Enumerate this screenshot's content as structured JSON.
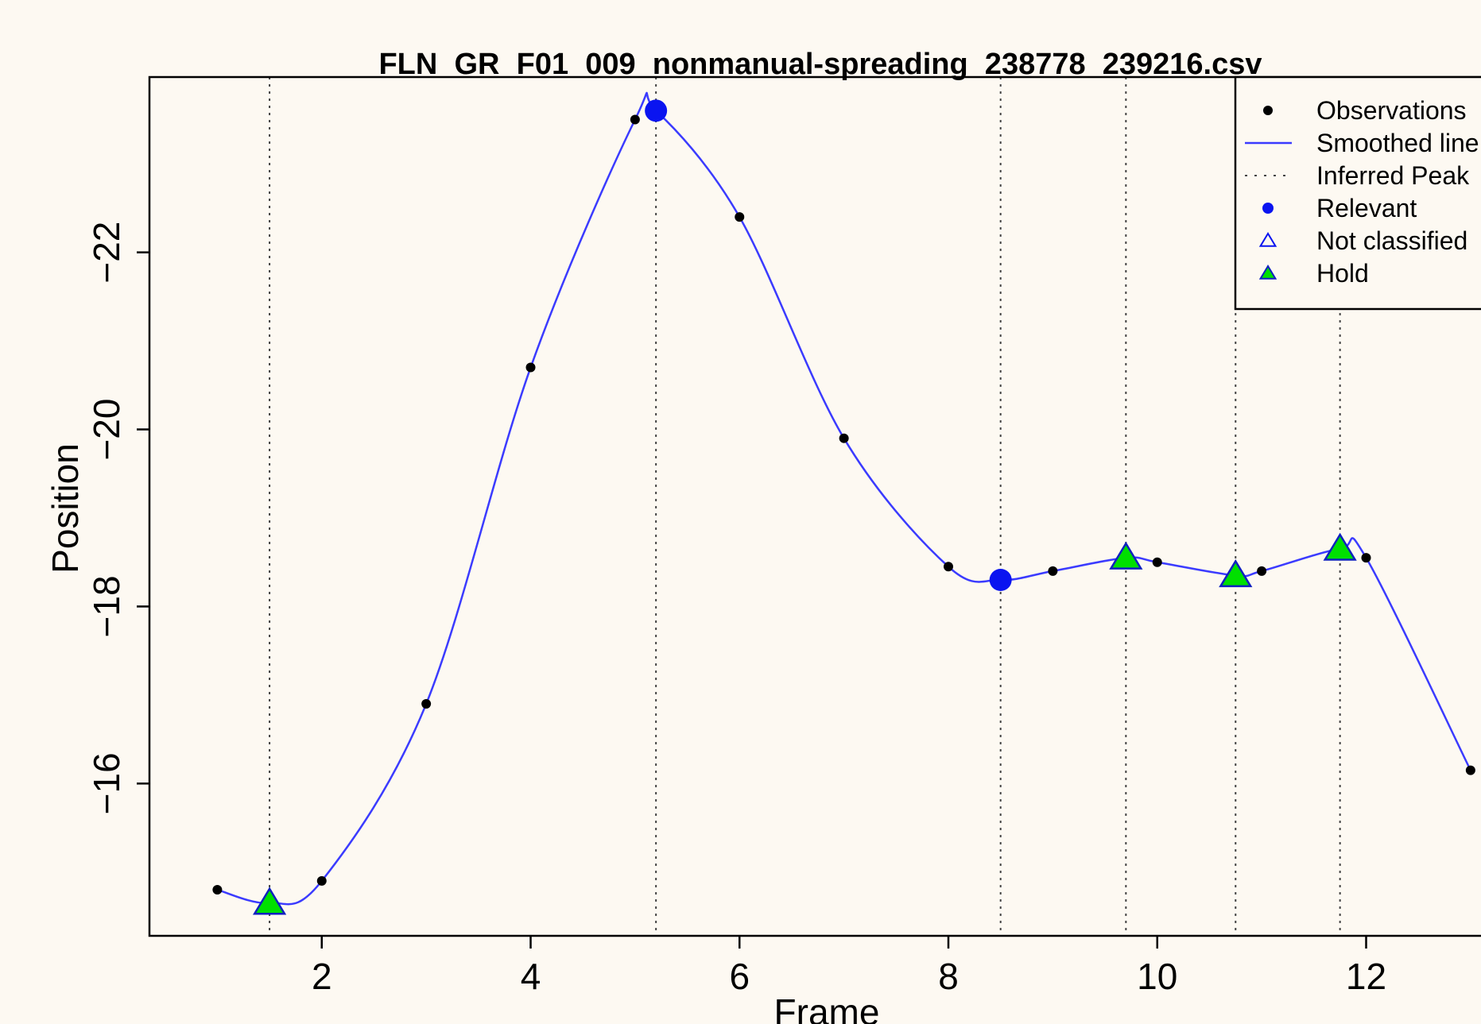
{
  "chart_data": {
    "type": "line",
    "title": "FLN_GR_F01_009_nonmanual-spreading_238778_239216.csv",
    "xlabel": "Frame",
    "ylabel": "Position",
    "xlim": [
      0.35,
      13.1
    ],
    "ylim": [
      -14.28,
      -23.98
    ],
    "x_ticks": [
      2,
      4,
      6,
      8,
      10,
      12
    ],
    "y_ticks": [
      -16,
      -18,
      -20,
      -22
    ],
    "grid": false,
    "legend_position": "top-right",
    "colors": {
      "line": "#3b3bff",
      "relevant": "#0a14f0",
      "hold_fill": "#00e000",
      "hold_edge": "#1020c0",
      "observation": "#000000",
      "peak_line": "#444444"
    },
    "observations": [
      {
        "x": 1,
        "y": -14.8
      },
      {
        "x": 2,
        "y": -14.9
      },
      {
        "x": 3,
        "y": -16.9
      },
      {
        "x": 4,
        "y": -20.7
      },
      {
        "x": 5,
        "y": -23.5
      },
      {
        "x": 6,
        "y": -22.4
      },
      {
        "x": 7,
        "y": -19.9
      },
      {
        "x": 8,
        "y": -18.45
      },
      {
        "x": 9,
        "y": -18.4
      },
      {
        "x": 10,
        "y": -18.5
      },
      {
        "x": 11,
        "y": -18.4
      },
      {
        "x": 12,
        "y": -18.55
      },
      {
        "x": 13,
        "y": -16.15
      }
    ],
    "smoothed_line": [
      {
        "x": 1,
        "y": -14.8
      },
      {
        "x": 1.5,
        "y": -14.65
      },
      {
        "x": 2,
        "y": -14.9
      },
      {
        "x": 3,
        "y": -16.9
      },
      {
        "x": 4,
        "y": -20.7
      },
      {
        "x": 5,
        "y": -23.5
      },
      {
        "x": 5.2,
        "y": -23.6
      },
      {
        "x": 6,
        "y": -22.4
      },
      {
        "x": 7,
        "y": -19.9
      },
      {
        "x": 8,
        "y": -18.45
      },
      {
        "x": 8.5,
        "y": -18.3
      },
      {
        "x": 9,
        "y": -18.4
      },
      {
        "x": 9.7,
        "y": -18.55
      },
      {
        "x": 10,
        "y": -18.5
      },
      {
        "x": 10.75,
        "y": -18.35
      },
      {
        "x": 11,
        "y": -18.4
      },
      {
        "x": 11.75,
        "y": -18.65
      },
      {
        "x": 12,
        "y": -18.55
      },
      {
        "x": 13,
        "y": -16.15
      }
    ],
    "inferred_peaks": [
      1.5,
      5.2,
      8.5,
      9.7,
      10.75,
      11.75
    ],
    "relevant_points": [
      {
        "x": 5.2,
        "y": -23.6
      },
      {
        "x": 8.5,
        "y": -18.3
      }
    ],
    "hold_points": [
      {
        "x": 1.5,
        "y": -14.65
      },
      {
        "x": 9.7,
        "y": -18.55
      },
      {
        "x": 10.75,
        "y": -18.35
      },
      {
        "x": 11.75,
        "y": -18.65
      }
    ],
    "legend": [
      {
        "label": "Observations",
        "symbol": "observation"
      },
      {
        "label": "Smoothed line",
        "symbol": "line"
      },
      {
        "label": "Inferred Peak",
        "symbol": "dotted"
      },
      {
        "label": "Relevant",
        "symbol": "relevant"
      },
      {
        "label": "Not classified",
        "symbol": "open-triangle"
      },
      {
        "label": "Hold",
        "symbol": "hold"
      }
    ]
  }
}
